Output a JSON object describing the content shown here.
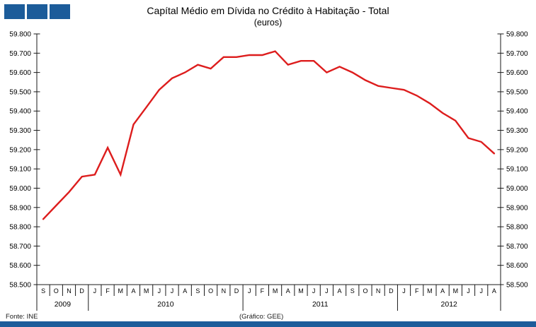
{
  "title": "Capítal Médio em Dívida no Crédito à Habitação - Total",
  "subtitle": "(euros)",
  "footer": {
    "source": "Fonte: INE",
    "credit": "(Gráfico: GEE)"
  },
  "colors": {
    "brand_blue": "#1C5C9A",
    "line_red": "#DD1D1D",
    "axis_black": "#1a1a1a"
  },
  "chart_data": {
    "type": "line",
    "title": "Capítal Médio em Dívida no Crédito à Habitação - Total",
    "subtitle": "(euros)",
    "unit": "euros",
    "grid": false,
    "legend": null,
    "ylim": [
      58500,
      59800
    ],
    "ytick_step": 100,
    "ytick_labels": [
      "58.500",
      "58.600",
      "58.700",
      "58.800",
      "58.900",
      "59.000",
      "59.100",
      "59.200",
      "59.300",
      "59.400",
      "59.500",
      "59.600",
      "59.700",
      "59.800"
    ],
    "months": [
      "S",
      "O",
      "N",
      "D",
      "J",
      "F",
      "M",
      "A",
      "M",
      "J",
      "J",
      "A",
      "S",
      "O",
      "N",
      "D",
      "J",
      "F",
      "M",
      "A",
      "M",
      "J",
      "J",
      "A",
      "S",
      "O",
      "N",
      "D",
      "J",
      "F",
      "M",
      "A",
      "M",
      "J",
      "J",
      "A"
    ],
    "years": [
      {
        "label": "2009",
        "months": 4
      },
      {
        "label": "2010",
        "months": 12
      },
      {
        "label": "2011",
        "months": 12
      },
      {
        "label": "2012",
        "months": 8
      }
    ],
    "values": [
      58840,
      58910,
      58980,
      59060,
      59070,
      59210,
      59070,
      59330,
      59420,
      59510,
      59570,
      59600,
      59640,
      59620,
      59680,
      59680,
      59690,
      59690,
      59710,
      59640,
      59660,
      59660,
      59600,
      59630,
      59600,
      59560,
      59530,
      59520,
      59510,
      59480,
      59440,
      59390,
      59350,
      59260,
      59240,
      59180
    ]
  }
}
